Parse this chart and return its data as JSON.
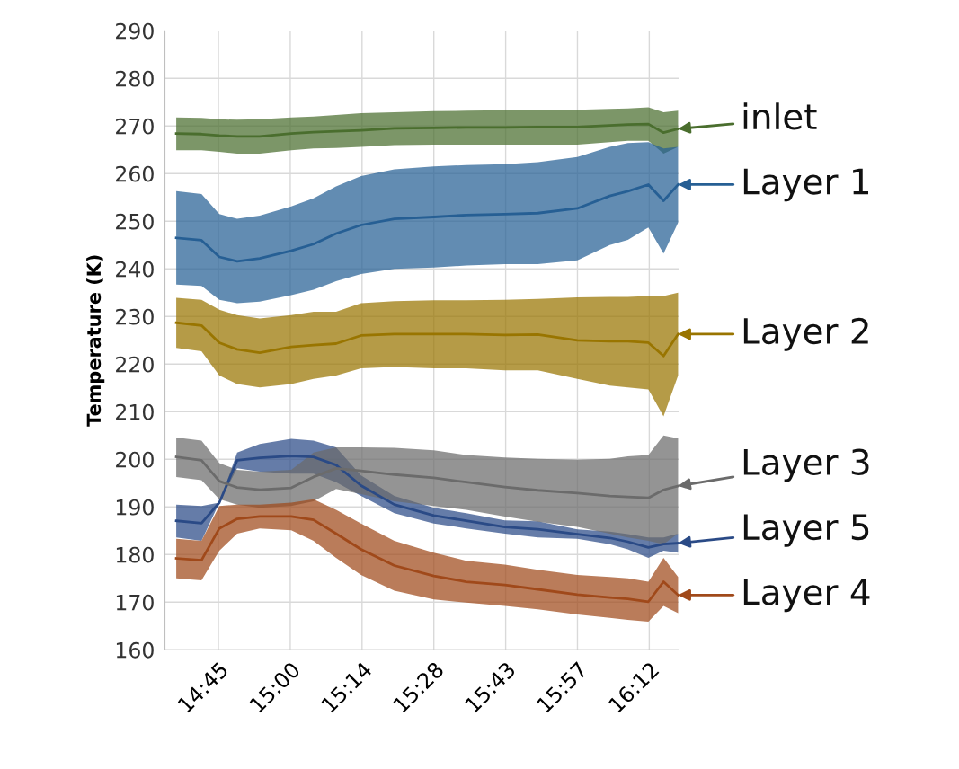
{
  "chart_data": {
    "type": "line",
    "ylabel": "Temperature (K)",
    "x": [
      14.608,
      14.693,
      14.753,
      14.813,
      14.889,
      14.995,
      15.07,
      15.146,
      15.23,
      15.342,
      15.475,
      15.584,
      15.714,
      15.825,
      15.958,
      16.067,
      16.128,
      16.197,
      16.248,
      16.297
    ],
    "xlim": [
      14.57,
      16.3
    ],
    "xticks": [
      {
        "value": 14.75,
        "label": "14:45"
      },
      {
        "value": 14.9917,
        "label": "15:00"
      },
      {
        "value": 15.2333,
        "label": "15:14"
      },
      {
        "value": 15.475,
        "label": "15:28"
      },
      {
        "value": 15.7167,
        "label": "15:43"
      },
      {
        "value": 15.9583,
        "label": "15:57"
      },
      {
        "value": 16.2,
        "label": "16:12"
      }
    ],
    "ylim": [
      160,
      290
    ],
    "yticks": [
      160,
      170,
      180,
      190,
      200,
      210,
      220,
      230,
      240,
      250,
      260,
      270,
      280,
      290
    ],
    "grid": true,
    "legend": "right",
    "marker": "none",
    "line_style": "solid",
    "series": [
      {
        "name": "inlet",
        "color": "#4a6e2e",
        "values": [
          268.4,
          268.3,
          268.0,
          267.8,
          267.8,
          268.4,
          268.7,
          268.9,
          269.1,
          269.5,
          269.6,
          269.7,
          269.7,
          269.8,
          269.8,
          270.1,
          270.3,
          270.4,
          268.6,
          269.4
        ],
        "lower": [
          264.9,
          264.9,
          264.6,
          264.2,
          264.2,
          264.9,
          265.3,
          265.4,
          265.6,
          266.0,
          266.1,
          266.1,
          266.1,
          266.1,
          266.1,
          266.6,
          266.9,
          266.9,
          264.2,
          265.6
        ],
        "upper": [
          271.8,
          271.7,
          271.4,
          271.3,
          271.4,
          271.8,
          272.0,
          272.3,
          272.7,
          272.9,
          273.1,
          273.2,
          273.3,
          273.4,
          273.4,
          273.6,
          273.7,
          273.9,
          272.9,
          273.2
        ]
      },
      {
        "name": "Layer 1",
        "color": "#265f94",
        "values": [
          246.5,
          246.0,
          242.5,
          241.6,
          242.2,
          243.8,
          245.2,
          247.4,
          249.2,
          250.5,
          250.9,
          251.3,
          251.5,
          251.7,
          252.7,
          255.3,
          256.3,
          257.7,
          254.3,
          257.7
        ],
        "lower": [
          236.7,
          236.4,
          233.5,
          232.8,
          233.1,
          234.5,
          235.6,
          237.4,
          238.9,
          240.0,
          240.3,
          240.7,
          241.0,
          241.0,
          241.8,
          245.0,
          246.1,
          248.7,
          243.2,
          249.7
        ],
        "upper": [
          256.3,
          255.7,
          251.5,
          250.5,
          251.2,
          253.1,
          254.8,
          257.3,
          259.5,
          260.9,
          261.5,
          261.8,
          262.0,
          262.4,
          263.5,
          265.6,
          266.4,
          266.6,
          265.3,
          265.6
        ]
      },
      {
        "name": "Layer 2",
        "color": "#997500",
        "values": [
          228.7,
          228.1,
          224.5,
          223.1,
          222.4,
          223.6,
          224.0,
          224.3,
          226.0,
          226.3,
          226.3,
          226.3,
          226.1,
          226.2,
          225.0,
          224.8,
          224.8,
          224.5,
          221.7,
          226.3
        ],
        "lower": [
          223.4,
          222.7,
          217.6,
          215.8,
          215.1,
          215.8,
          216.9,
          217.6,
          219.1,
          219.4,
          219.1,
          219.1,
          218.7,
          218.7,
          216.9,
          215.5,
          215.1,
          214.7,
          209.0,
          217.6
        ],
        "upper": [
          233.9,
          233.5,
          231.4,
          230.3,
          229.6,
          230.3,
          231.0,
          231.0,
          232.8,
          233.2,
          233.4,
          233.4,
          233.5,
          233.7,
          234.0,
          234.1,
          234.1,
          234.3,
          234.3,
          235.0
        ]
      },
      {
        "name": "Layer 5",
        "color": "#2a4a86",
        "values": [
          187.1,
          186.6,
          190.9,
          199.8,
          200.3,
          200.7,
          200.5,
          198.8,
          194.5,
          190.5,
          188.2,
          187.1,
          185.8,
          185.3,
          184.3,
          183.5,
          182.7,
          181.5,
          182.2,
          182.4
        ],
        "lower": [
          183.6,
          182.9,
          190.9,
          198.1,
          197.4,
          197.0,
          197.0,
          195.2,
          192.3,
          188.7,
          186.5,
          185.5,
          184.4,
          183.6,
          183.3,
          182.2,
          181.1,
          179.3,
          180.8,
          180.4
        ],
        "upper": [
          190.5,
          190.2,
          190.9,
          201.4,
          203.2,
          204.3,
          203.9,
          202.5,
          196.6,
          192.3,
          189.8,
          188.7,
          187.2,
          187.0,
          185.3,
          184.8,
          184.3,
          183.6,
          183.6,
          184.4
        ]
      },
      {
        "name": "Layer 3",
        "color": "#6b6b6b",
        "values": [
          200.5,
          199.8,
          195.4,
          194.1,
          193.6,
          194.0,
          196.3,
          198.1,
          197.6,
          196.8,
          196.1,
          195.2,
          194.2,
          193.5,
          192.9,
          192.3,
          192.1,
          191.9,
          193.6,
          194.4
        ],
        "lower": [
          196.3,
          195.6,
          191.6,
          190.5,
          189.8,
          190.2,
          191.2,
          193.8,
          192.7,
          191.2,
          190.2,
          189.4,
          188.0,
          186.9,
          185.8,
          184.4,
          183.6,
          182.9,
          182.2,
          184.4
        ],
        "upper": [
          204.6,
          203.9,
          199.2,
          197.8,
          197.4,
          197.8,
          201.4,
          202.5,
          202.5,
          202.4,
          201.9,
          200.9,
          200.4,
          200.1,
          199.9,
          200.1,
          200.6,
          200.9,
          205.0,
          204.4
        ]
      },
      {
        "name": "Layer 4",
        "color": "#a0491a",
        "values": [
          179.2,
          178.8,
          185.5,
          187.5,
          188.0,
          188.0,
          187.3,
          184.4,
          181.1,
          177.7,
          175.5,
          174.3,
          173.6,
          172.7,
          171.6,
          171.0,
          170.7,
          170.1,
          174.3,
          171.5
        ],
        "lower": [
          175.0,
          174.6,
          180.8,
          184.4,
          185.5,
          185.1,
          182.9,
          179.3,
          175.7,
          172.4,
          170.6,
          169.9,
          169.2,
          168.5,
          167.4,
          166.7,
          166.3,
          165.9,
          169.2,
          167.7
        ],
        "upper": [
          183.3,
          182.9,
          190.2,
          190.5,
          190.5,
          190.9,
          191.6,
          189.4,
          186.5,
          182.9,
          180.4,
          178.7,
          177.9,
          176.8,
          175.7,
          175.3,
          175.0,
          174.3,
          179.3,
          175.3
        ]
      }
    ]
  }
}
